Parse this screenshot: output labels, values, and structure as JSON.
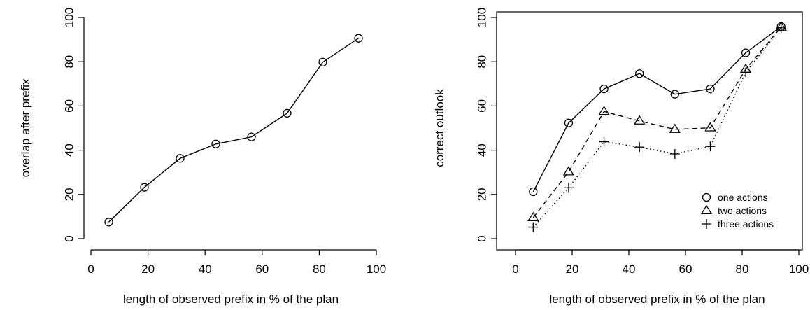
{
  "chart_data": [
    {
      "type": "line",
      "title": "",
      "xlabel": "length of observed prefix in % of the plan",
      "ylabel": "overlap after prefix",
      "xlim": [
        0,
        100
      ],
      "ylim": [
        0,
        100
      ],
      "xticks": [
        0,
        20,
        40,
        60,
        80,
        100
      ],
      "yticks": [
        0,
        20,
        40,
        60,
        80,
        100
      ],
      "grid": false,
      "box": "open",
      "series": [
        {
          "marker": "circle",
          "linestyle": "solid",
          "x": [
            6.25,
            18.75,
            31.25,
            43.75,
            56.25,
            68.75,
            81.25,
            93.75
          ],
          "y": [
            7.5,
            23.2,
            36.3,
            42.8,
            46.0,
            56.7,
            79.8,
            90.6
          ]
        }
      ]
    },
    {
      "type": "line",
      "title": "",
      "xlabel": "length of observed prefix in % of the plan",
      "ylabel": "correct outlook",
      "xlim": [
        0,
        100
      ],
      "ylim": [
        0,
        100
      ],
      "xticks": [
        0,
        20,
        40,
        60,
        80,
        100
      ],
      "yticks": [
        0,
        20,
        40,
        60,
        80,
        100
      ],
      "grid": false,
      "box": "closed",
      "legend_position": "bottom-right",
      "series": [
        {
          "name": "one actions",
          "marker": "circle",
          "linestyle": "solid",
          "x": [
            6.25,
            18.75,
            31.25,
            43.75,
            56.25,
            68.75,
            81.25,
            93.75
          ],
          "y": [
            21.2,
            52.3,
            67.7,
            74.6,
            65.3,
            67.7,
            84.0,
            95.9
          ]
        },
        {
          "name": "two actions",
          "marker": "triangle",
          "linestyle": "dashed",
          "x": [
            6.25,
            18.75,
            31.25,
            43.75,
            56.25,
            68.75,
            81.25,
            93.75
          ],
          "y": [
            9.5,
            30.2,
            57.5,
            53.2,
            49.4,
            50.1,
            76.6,
            95.6
          ]
        },
        {
          "name": "three actions",
          "marker": "plus",
          "linestyle": "dotted",
          "x": [
            6.25,
            18.75,
            31.25,
            43.75,
            56.25,
            68.75,
            81.25,
            93.75
          ],
          "y": [
            5.2,
            23.0,
            43.8,
            41.4,
            38.3,
            41.7,
            75.2,
            95.3
          ]
        }
      ]
    }
  ]
}
